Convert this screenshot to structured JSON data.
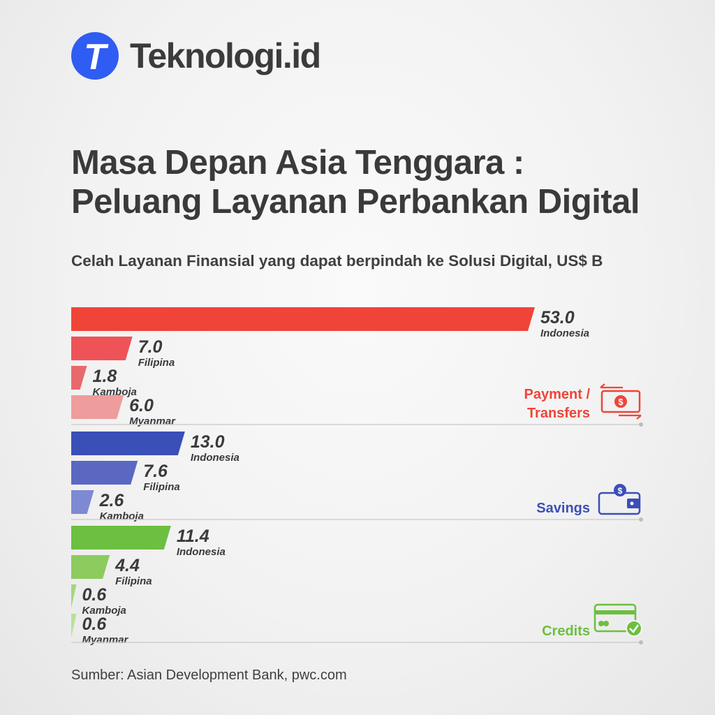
{
  "brand": {
    "name": "Teknologi.id",
    "logo_letter": "T",
    "logo_color": "#2f5cf2"
  },
  "title_line1": "Masa Depan Asia Tenggara :",
  "title_line2": "Peluang Layanan Perbankan Digital",
  "source": "Sumber: Asian Development Bank, pwc.com",
  "chart_data": {
    "type": "bar",
    "orientation": "horizontal",
    "title": "Celah Layanan Finansial yang dapat berpindah ke Solusi Digital, US$ B",
    "xlim": [
      0,
      53
    ],
    "grid": false,
    "groups": [
      {
        "name": "Payment / Transfers",
        "name_lines": [
          "Payment /",
          "Transfers"
        ],
        "icon": "money-transfer-icon",
        "color": "#f04438",
        "bars": [
          {
            "country": "Indonesia",
            "value": 53.0,
            "label": "53.0",
            "color": "#f04438"
          },
          {
            "country": "Filipina",
            "value": 7.0,
            "label": "7.0",
            "color": "#ee5358"
          },
          {
            "country": "Kamboja",
            "value": 1.8,
            "label": "1.8",
            "color": "#e8696d"
          },
          {
            "country": "Myanmar",
            "value": 6.0,
            "label": "6.0",
            "color": "#ee9c9c"
          }
        ]
      },
      {
        "name": "Savings",
        "name_lines": [
          "Savings"
        ],
        "icon": "wallet-icon",
        "color": "#3a4fb8",
        "bars": [
          {
            "country": "Indonesia",
            "value": 13.0,
            "label": "13.0",
            "color": "#3a4fb8"
          },
          {
            "country": "Filipina",
            "value": 7.6,
            "label": "7.6",
            "color": "#5a68c2"
          },
          {
            "country": "Kamboja",
            "value": 2.6,
            "label": "2.6",
            "color": "#7d89d2"
          }
        ]
      },
      {
        "name": "Credits",
        "name_lines": [
          "Credits"
        ],
        "icon": "credit-card-icon",
        "color": "#6cbf40",
        "bars": [
          {
            "country": "Indonesia",
            "value": 11.4,
            "label": "11.4",
            "color": "#6cbf40"
          },
          {
            "country": "Filipina",
            "value": 4.4,
            "label": "4.4",
            "color": "#8ccb5e"
          },
          {
            "country": "Kamboja",
            "value": 0.6,
            "label": "0.6",
            "color": "#a5d77e"
          },
          {
            "country": "Myanmar",
            "value": 0.6,
            "label": "0.6",
            "color": "#b9e09a"
          }
        ]
      }
    ]
  }
}
